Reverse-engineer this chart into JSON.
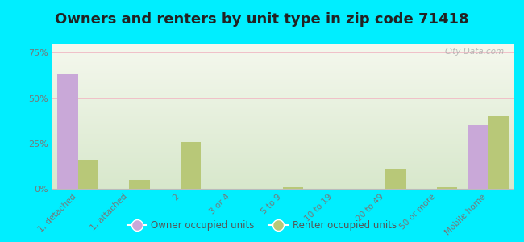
{
  "title": "Owners and renters by unit type in zip code 71418",
  "categories": [
    "1, detached",
    "1, attached",
    "2",
    "3 or 4",
    "5 to 9",
    "10 to 19",
    "20 to 49",
    "50 or more",
    "Mobile home"
  ],
  "owner_values": [
    63,
    0,
    0,
    0,
    0,
    0,
    0,
    0,
    35
  ],
  "renter_values": [
    16,
    5,
    26,
    0,
    1,
    0,
    11,
    1,
    40
  ],
  "owner_color": "#c9a8d8",
  "renter_color": "#b8c878",
  "background_outer": "#00eeff",
  "ylim": [
    0,
    80
  ],
  "yticks": [
    0,
    25,
    50,
    75
  ],
  "ytick_labels": [
    "0%",
    "25%",
    "50%",
    "75%"
  ],
  "title_fontsize": 13,
  "legend_owner": "Owner occupied units",
  "legend_renter": "Renter occupied units",
  "watermark": "City-Data.com",
  "bar_width": 0.4,
  "grid_color": "#f0c0c8",
  "inner_bg_top": "#f5f8ee",
  "inner_bg_bottom": "#d8e8cc"
}
